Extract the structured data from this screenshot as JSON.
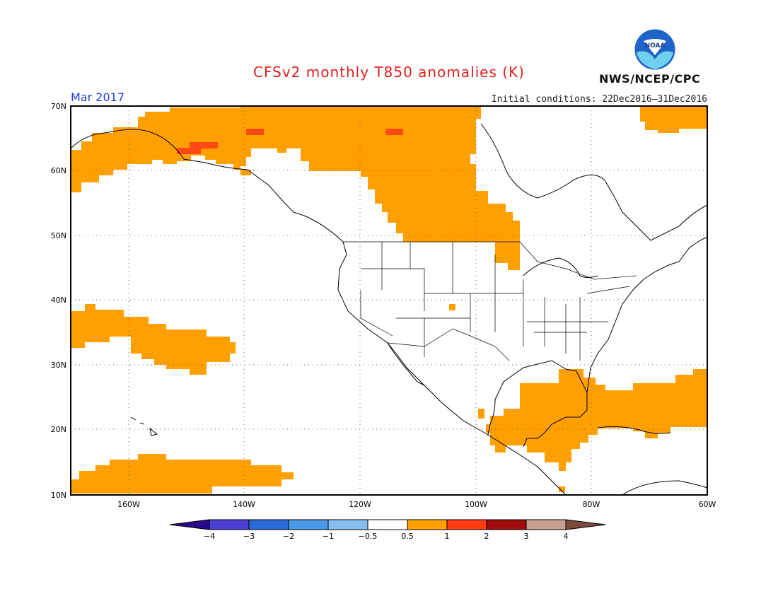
{
  "header": {
    "title": "CFSv2 monthly T850 anomalies (K)",
    "month": "Mar 2017",
    "initial_conditions": "Initial conditions: 22Dec2016–31Dec2016",
    "agency": "NWS/NCEP/CPC",
    "logo_text": "NOAA"
  },
  "map": {
    "lat_labels": [
      "70N",
      "60N",
      "50N",
      "40N",
      "30N",
      "20N",
      "10N"
    ],
    "lon_labels": [
      "160W",
      "140W",
      "120W",
      "100W",
      "80W",
      "60W"
    ],
    "lat_range": [
      10,
      70
    ],
    "lon_range": [
      -170,
      -60
    ],
    "grid": true
  },
  "colorbar": {
    "labels": [
      "−4",
      "−3",
      "−2",
      "−1",
      "−0.5",
      "0.5",
      "1",
      "2",
      "3",
      "4"
    ],
    "colors": [
      "#2a0a8a",
      "#4a3fd0",
      "#2a6ad8",
      "#4a98e8",
      "#84bff0",
      "#ffffff",
      "#ffa000",
      "#ff3c14",
      "#a00a0a",
      "#c8a090",
      "#7a4a3a"
    ]
  },
  "anomaly_colors": {
    "warm1": "#ffa000",
    "warm2": "#ff4a14"
  }
}
